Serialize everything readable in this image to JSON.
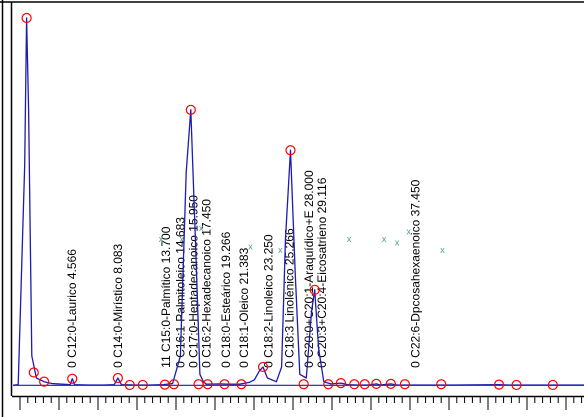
{
  "chart_data": {
    "type": "line",
    "title": "",
    "xlabel": "",
    "ylabel": "",
    "xlim": [
      0,
      44
    ],
    "ylim": [
      -1,
      100
    ],
    "grid": false,
    "legend": "none",
    "colors": {
      "trace": "#1c1cb4",
      "baseline": "#1c1cb4",
      "peak_marker": "#ff0000",
      "axis": "#000000",
      "x_marker": "#4a9a9a"
    },
    "series": [
      {
        "values": [
          [
            0,
            0
          ],
          [
            0.4,
            0.2
          ],
          [
            0.9,
            60
          ],
          [
            1.05,
            100
          ],
          [
            1.2,
            75
          ],
          [
            1.45,
            8
          ],
          [
            1.8,
            2
          ],
          [
            2.4,
            1
          ],
          [
            3.0,
            0.5
          ],
          [
            3.8,
            0.3
          ],
          [
            4.4,
            0.2
          ],
          [
            4.566,
            1.8
          ],
          [
            4.75,
            0.2
          ],
          [
            5.8,
            0.1
          ],
          [
            7.0,
            0.1
          ],
          [
            7.8,
            0.2
          ],
          [
            8.083,
            2.0
          ],
          [
            8.35,
            0.2
          ],
          [
            9.5,
            0.1
          ],
          [
            10.5,
            0.1
          ],
          [
            11.6,
            0.2
          ],
          [
            12.3,
            0.5
          ],
          [
            12.9,
            8
          ],
          [
            13.35,
            58
          ],
          [
            13.7,
            75
          ],
          [
            14.1,
            35
          ],
          [
            14.4,
            3
          ],
          [
            14.683,
            0.9
          ],
          [
            14.9,
            0.3
          ],
          [
            15.95,
            0.4
          ],
          [
            16.6,
            0.3
          ],
          [
            17.45,
            0.3
          ],
          [
            18.2,
            0.8
          ],
          [
            18.6,
            1.5
          ],
          [
            19.0,
            4
          ],
          [
            19.266,
            5
          ],
          [
            19.6,
            2
          ],
          [
            20.3,
            1
          ],
          [
            20.7,
            5
          ],
          [
            21.0,
            40
          ],
          [
            21.383,
            64
          ],
          [
            21.75,
            30
          ],
          [
            22.1,
            3
          ],
          [
            22.6,
            2
          ],
          [
            23.0,
            20
          ],
          [
            23.25,
            26
          ],
          [
            23.55,
            10
          ],
          [
            23.95,
            1
          ],
          [
            24.5,
            0.4
          ],
          [
            25.266,
            0.6
          ],
          [
            25.8,
            0.2
          ],
          [
            26.5,
            0.1
          ],
          [
            27.4,
            0.1
          ],
          [
            28.0,
            0.4
          ],
          [
            28.3,
            0.1
          ],
          [
            29.116,
            0.4
          ],
          [
            29.6,
            0.1
          ],
          [
            31.5,
            0.1
          ],
          [
            34.0,
            0.1
          ],
          [
            37.45,
            0.2
          ],
          [
            38.2,
            0.1
          ],
          [
            41.0,
            0.1
          ],
          [
            44.0,
            0.1
          ]
        ]
      }
    ],
    "baseline": [
      [
        0,
        0
      ],
      [
        44,
        0
      ]
    ],
    "peak_markers": [
      [
        1.05,
        100
      ],
      [
        1.6,
        3.5
      ],
      [
        2.4,
        1
      ],
      [
        4.566,
        1.8
      ],
      [
        8.083,
        2.0
      ],
      [
        9.0,
        0.1
      ],
      [
        10.0,
        0.1
      ],
      [
        11.7,
        0.2
      ],
      [
        13.7,
        75
      ],
      [
        12.4,
        0.3
      ],
      [
        14.3,
        0.3
      ],
      [
        15.0,
        0.3
      ],
      [
        16.3,
        0.3
      ],
      [
        17.6,
        0.3
      ],
      [
        19.266,
        5
      ],
      [
        21.383,
        64
      ],
      [
        23.25,
        26
      ],
      [
        22.4,
        0.3
      ],
      [
        24.3,
        0.3
      ],
      [
        25.266,
        0.6
      ],
      [
        26.3,
        0.3
      ],
      [
        27.1,
        0.3
      ],
      [
        28.0,
        0.4
      ],
      [
        29.116,
        0.4
      ],
      [
        30.2,
        0.3
      ],
      [
        33.0,
        0.3
      ],
      [
        37.45,
        0.2
      ],
      [
        38.8,
        0.1
      ],
      [
        41.6,
        0.1
      ]
    ],
    "x_markers": [
      [
        11.4,
        39
      ],
      [
        13.0,
        39
      ],
      [
        14.5,
        42
      ],
      [
        18.3,
        37
      ],
      [
        20.6,
        36
      ],
      [
        25.9,
        39
      ],
      [
        28.6,
        39
      ],
      [
        29.6,
        38
      ],
      [
        30.5,
        41
      ],
      [
        33.1,
        36
      ]
    ],
    "peak_labels": [
      {
        "text": "0 C12:0-Laurico 4.566",
        "x": 4.566
      },
      {
        "text": "0 C14:0-Mirístico 8.083",
        "x": 8.083
      },
      {
        "text": "11 C15:0-Palmítico 13.700",
        "x": 11.8
      },
      {
        "text": "0 C16:1-Palmitoleico 14.683",
        "x": 12.9
      },
      {
        "text": "0 C17:0-Heptadecanoico 15.950",
        "x": 13.9
      },
      {
        "text": "0 C16:2-Hexadecanoico 17.450",
        "x": 14.9
      },
      {
        "text": "0 C18:0-Esteárico 19.266",
        "x": 16.4
      },
      {
        "text": "0 C18:1-Oleico 21.383",
        "x": 17.8
      },
      {
        "text": "0 C18:2-Linoleico 23.250",
        "x": 19.7
      },
      {
        "text": "0 C18:3 Linolénico 25.266",
        "x": 21.3
      },
      {
        "text": "0 C20:0+C20:1-Araquídico+E 28.000",
        "x": 22.8
      },
      {
        "text": "0 C20:3+C20:4-Eicosatrieno 29.116",
        "x": 23.8
      },
      {
        "text": "0 C22:6-Dpcosahexaenoico 37.450",
        "x": 31.0
      }
    ],
    "label_base_level": 1.5
  }
}
